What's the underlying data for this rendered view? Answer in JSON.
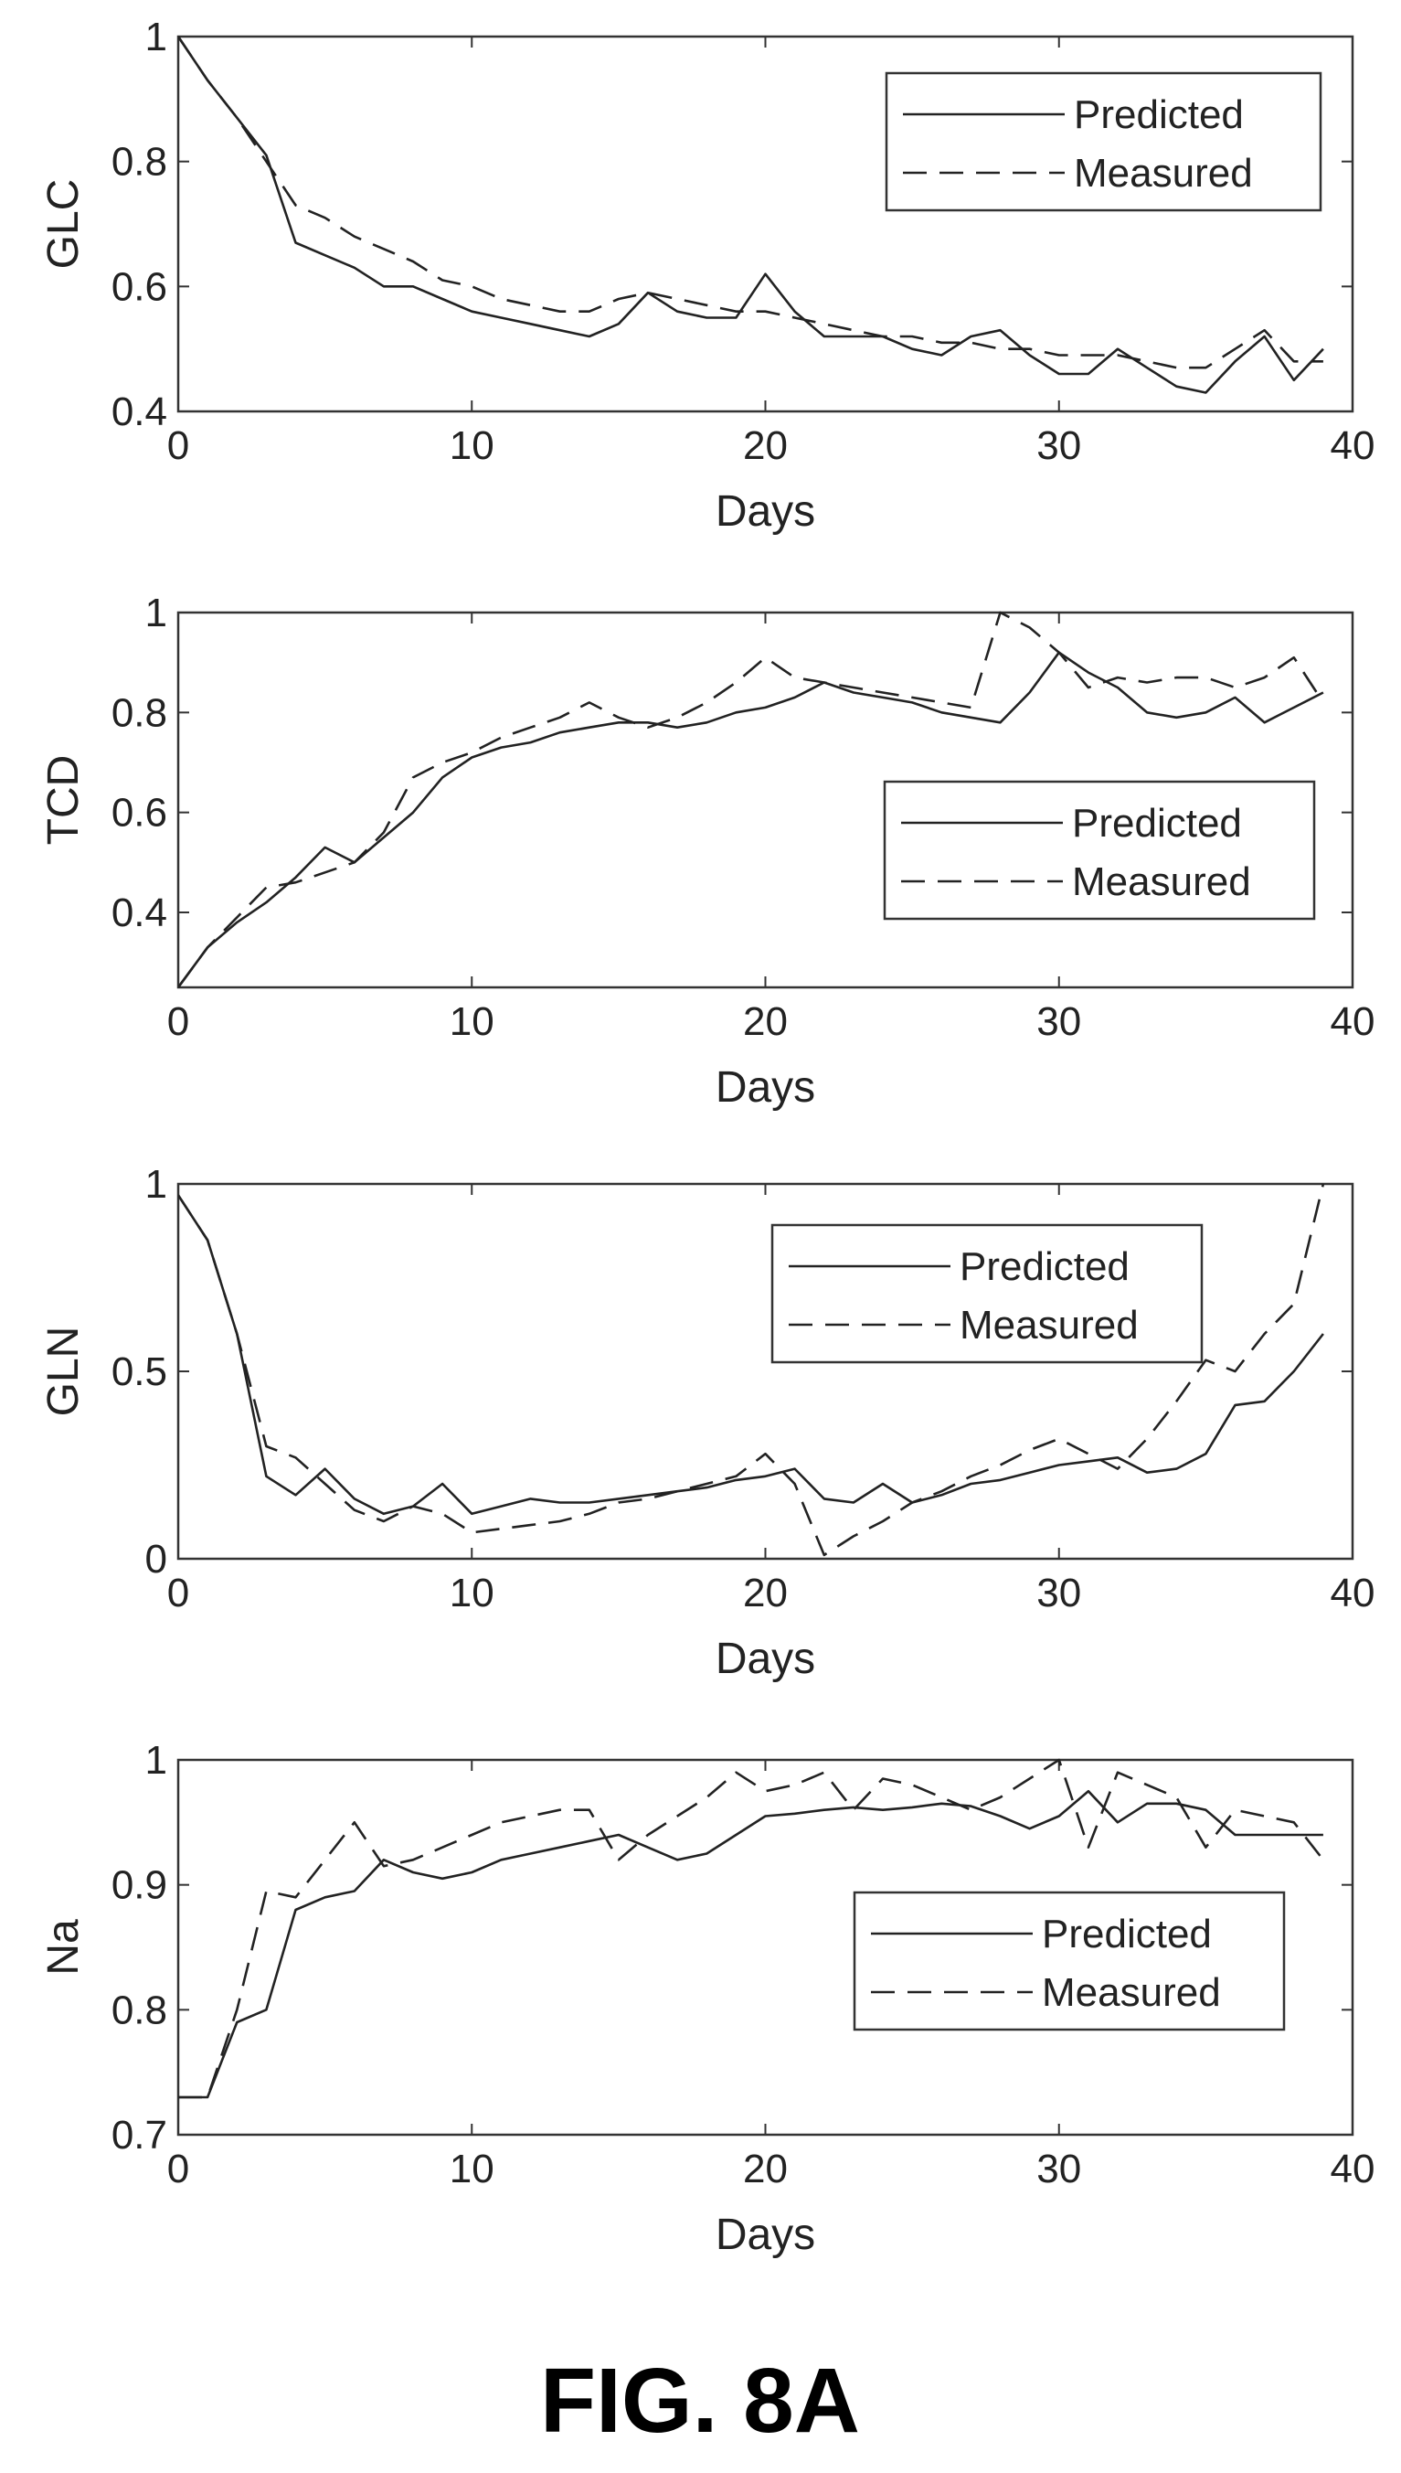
{
  "caption": "FIG. 8A",
  "chart_data": [
    {
      "type": "line",
      "ylabel": "GLC",
      "xlabel": "Days",
      "xlim": [
        0,
        40
      ],
      "ylim": [
        0.4,
        1
      ],
      "xticks": [
        "0",
        "10",
        "20",
        "30",
        "40"
      ],
      "yticks": [
        "0.4",
        "0.6",
        "0.8",
        "1"
      ],
      "legend_position": "top-right",
      "x": [
        0,
        1,
        2,
        3,
        4,
        5,
        6,
        7,
        8,
        9,
        10,
        11,
        12,
        13,
        14,
        15,
        16,
        17,
        18,
        19,
        20,
        21,
        22,
        23,
        24,
        25,
        26,
        27,
        28,
        29,
        30,
        31,
        32,
        33,
        34,
        35,
        36,
        37,
        38,
        39
      ],
      "series": [
        {
          "name": "Predicted",
          "style": "solid",
          "values": [
            1.0,
            0.93,
            0.87,
            0.81,
            0.67,
            0.65,
            0.63,
            0.6,
            0.6,
            0.58,
            0.56,
            0.55,
            0.54,
            0.53,
            0.52,
            0.54,
            0.59,
            0.56,
            0.55,
            0.55,
            0.62,
            0.56,
            0.52,
            0.52,
            0.52,
            0.5,
            0.49,
            0.52,
            0.53,
            0.49,
            0.46,
            0.46,
            0.5,
            0.47,
            0.44,
            0.43,
            0.48,
            0.52,
            0.45,
            0.5
          ]
        },
        {
          "name": "Measured",
          "style": "dashed",
          "values": [
            1.0,
            0.93,
            0.87,
            0.8,
            0.73,
            0.71,
            0.68,
            0.66,
            0.64,
            0.61,
            0.6,
            0.58,
            0.57,
            0.56,
            0.56,
            0.58,
            0.59,
            0.58,
            0.57,
            0.56,
            0.56,
            0.55,
            0.54,
            0.53,
            0.52,
            0.52,
            0.51,
            0.51,
            0.5,
            0.5,
            0.49,
            0.49,
            0.49,
            0.48,
            0.47,
            0.47,
            0.5,
            0.53,
            0.48,
            0.48
          ]
        }
      ]
    },
    {
      "type": "line",
      "ylabel": "TCD",
      "xlabel": "Days",
      "xlim": [
        0,
        40
      ],
      "ylim": [
        0.25,
        1
      ],
      "xticks": [
        "0",
        "10",
        "20",
        "30",
        "40"
      ],
      "yticks": [
        "0.4",
        "0.6",
        "0.8",
        "1"
      ],
      "legend_position": "right",
      "x": [
        0,
        1,
        2,
        3,
        4,
        5,
        6,
        7,
        8,
        9,
        10,
        11,
        12,
        13,
        14,
        15,
        16,
        17,
        18,
        19,
        20,
        21,
        22,
        23,
        24,
        25,
        26,
        27,
        28,
        29,
        30,
        31,
        32,
        33,
        34,
        35,
        36,
        37,
        38,
        39
      ],
      "series": [
        {
          "name": "Predicted",
          "style": "solid",
          "values": [
            0.25,
            0.33,
            0.38,
            0.42,
            0.47,
            0.53,
            0.5,
            0.55,
            0.6,
            0.67,
            0.71,
            0.73,
            0.74,
            0.76,
            0.77,
            0.78,
            0.78,
            0.77,
            0.78,
            0.8,
            0.81,
            0.83,
            0.86,
            0.84,
            0.83,
            0.82,
            0.8,
            0.79,
            0.78,
            0.84,
            0.92,
            0.88,
            0.85,
            0.8,
            0.79,
            0.8,
            0.83,
            0.78,
            0.81,
            0.84
          ]
        },
        {
          "name": "Measured",
          "style": "dashed",
          "values": [
            0.25,
            0.33,
            0.39,
            0.45,
            0.46,
            0.48,
            0.5,
            0.56,
            0.67,
            0.7,
            0.72,
            0.75,
            0.77,
            0.79,
            0.82,
            0.79,
            0.77,
            0.79,
            0.82,
            0.86,
            0.91,
            0.87,
            0.86,
            0.85,
            0.84,
            0.83,
            0.82,
            0.81,
            1.0,
            0.97,
            0.92,
            0.85,
            0.87,
            0.86,
            0.87,
            0.87,
            0.85,
            0.87,
            0.91,
            0.82
          ]
        }
      ]
    },
    {
      "type": "line",
      "ylabel": "GLN",
      "xlabel": "Days",
      "xlim": [
        0,
        40
      ],
      "ylim": [
        0,
        1
      ],
      "xticks": [
        "0",
        "10",
        "20",
        "30",
        "40"
      ],
      "yticks": [
        "0",
        "0.5",
        "1"
      ],
      "legend_position": "top-right",
      "x": [
        0,
        1,
        2,
        3,
        4,
        5,
        6,
        7,
        8,
        9,
        10,
        11,
        12,
        13,
        14,
        15,
        16,
        17,
        18,
        19,
        20,
        21,
        22,
        23,
        24,
        25,
        26,
        27,
        28,
        29,
        30,
        31,
        32,
        33,
        34,
        35,
        36,
        37,
        38,
        39
      ],
      "series": [
        {
          "name": "Predicted",
          "style": "solid",
          "values": [
            0.97,
            0.85,
            0.6,
            0.22,
            0.17,
            0.24,
            0.16,
            0.12,
            0.14,
            0.2,
            0.12,
            0.14,
            0.16,
            0.15,
            0.15,
            0.16,
            0.17,
            0.18,
            0.19,
            0.21,
            0.22,
            0.24,
            0.16,
            0.15,
            0.2,
            0.15,
            0.17,
            0.2,
            0.21,
            0.23,
            0.25,
            0.26,
            0.27,
            0.23,
            0.24,
            0.28,
            0.41,
            0.42,
            0.5,
            0.6
          ]
        },
        {
          "name": "Measured",
          "style": "dashed",
          "values": [
            0.97,
            0.85,
            0.6,
            0.3,
            0.27,
            0.2,
            0.13,
            0.1,
            0.14,
            0.12,
            0.07,
            0.08,
            0.09,
            0.1,
            0.12,
            0.15,
            0.16,
            0.18,
            0.2,
            0.22,
            0.28,
            0.2,
            0.01,
            0.06,
            0.1,
            0.15,
            0.18,
            0.22,
            0.25,
            0.29,
            0.32,
            0.28,
            0.24,
            0.32,
            0.42,
            0.53,
            0.5,
            0.6,
            0.68,
            1.0
          ]
        }
      ]
    },
    {
      "type": "line",
      "ylabel": "Na",
      "xlabel": "Days",
      "xlim": [
        0,
        40
      ],
      "ylim": [
        0.7,
        1
      ],
      "xticks": [
        "0",
        "10",
        "20",
        "30",
        "40"
      ],
      "yticks": [
        "0.7",
        "0.8",
        "0.9",
        "1"
      ],
      "legend_position": "right",
      "x": [
        0,
        1,
        2,
        3,
        4,
        5,
        6,
        7,
        8,
        9,
        10,
        11,
        12,
        13,
        14,
        15,
        16,
        17,
        18,
        19,
        20,
        21,
        22,
        23,
        24,
        25,
        26,
        27,
        28,
        29,
        30,
        31,
        32,
        33,
        34,
        35,
        36,
        37,
        38,
        39
      ],
      "series": [
        {
          "name": "Predicted",
          "style": "solid",
          "values": [
            0.73,
            0.73,
            0.79,
            0.8,
            0.88,
            0.89,
            0.895,
            0.92,
            0.91,
            0.905,
            0.91,
            0.92,
            0.925,
            0.93,
            0.935,
            0.94,
            0.93,
            0.92,
            0.925,
            0.94,
            0.955,
            0.957,
            0.96,
            0.962,
            0.96,
            0.962,
            0.965,
            0.963,
            0.955,
            0.945,
            0.955,
            0.975,
            0.95,
            0.965,
            0.965,
            0.96,
            0.94,
            0.94,
            0.94,
            0.94
          ]
        },
        {
          "name": "Measured",
          "style": "dashed",
          "values": [
            0.73,
            0.73,
            0.8,
            0.895,
            0.89,
            0.92,
            0.95,
            0.915,
            0.92,
            0.93,
            0.94,
            0.95,
            0.955,
            0.96,
            0.96,
            0.92,
            0.94,
            0.955,
            0.97,
            0.99,
            0.975,
            0.98,
            0.99,
            0.96,
            0.985,
            0.98,
            0.97,
            0.96,
            0.97,
            0.985,
            1.0,
            0.93,
            0.99,
            0.98,
            0.97,
            0.93,
            0.96,
            0.955,
            0.95,
            0.92
          ]
        }
      ]
    }
  ]
}
